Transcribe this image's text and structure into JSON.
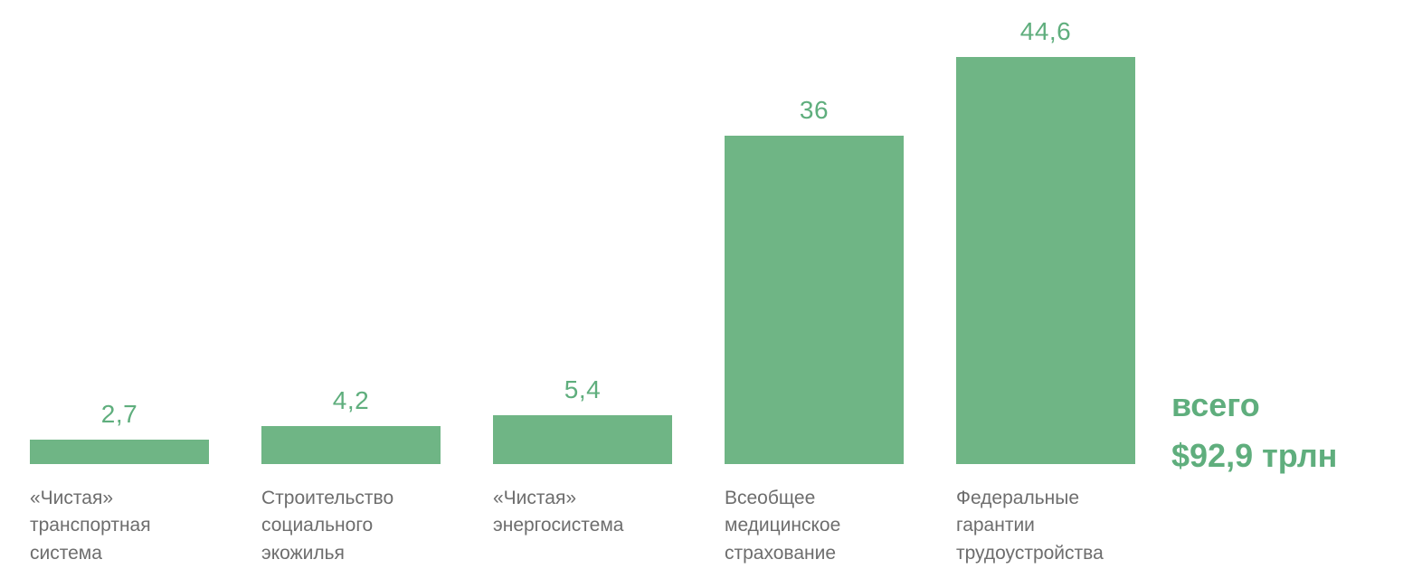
{
  "chart_data": {
    "type": "bar",
    "title": "",
    "xlabel": "",
    "ylabel": "",
    "categories": [
      "«Чистая» транспортная система",
      "Строительство социального экожилья",
      "«Чистая» энергосистема",
      "Всеобщее медицинское страхование",
      "Федеральные гарантии трудоустройства"
    ],
    "values": [
      2.7,
      4.2,
      5.4,
      36,
      44.6
    ],
    "value_labels": [
      "2,7",
      "4,2",
      "5,4",
      "36",
      "44,6"
    ],
    "ylim": [
      0,
      44.6
    ],
    "grid": false,
    "legend": false,
    "annotation": {
      "line1": "всего",
      "line2": "$92,9 трлн"
    },
    "colors": {
      "bar": "#6fb585",
      "value_label": "#5fae7d",
      "category_label": "#6d6d6d",
      "annotation": "#5fae7d"
    }
  }
}
